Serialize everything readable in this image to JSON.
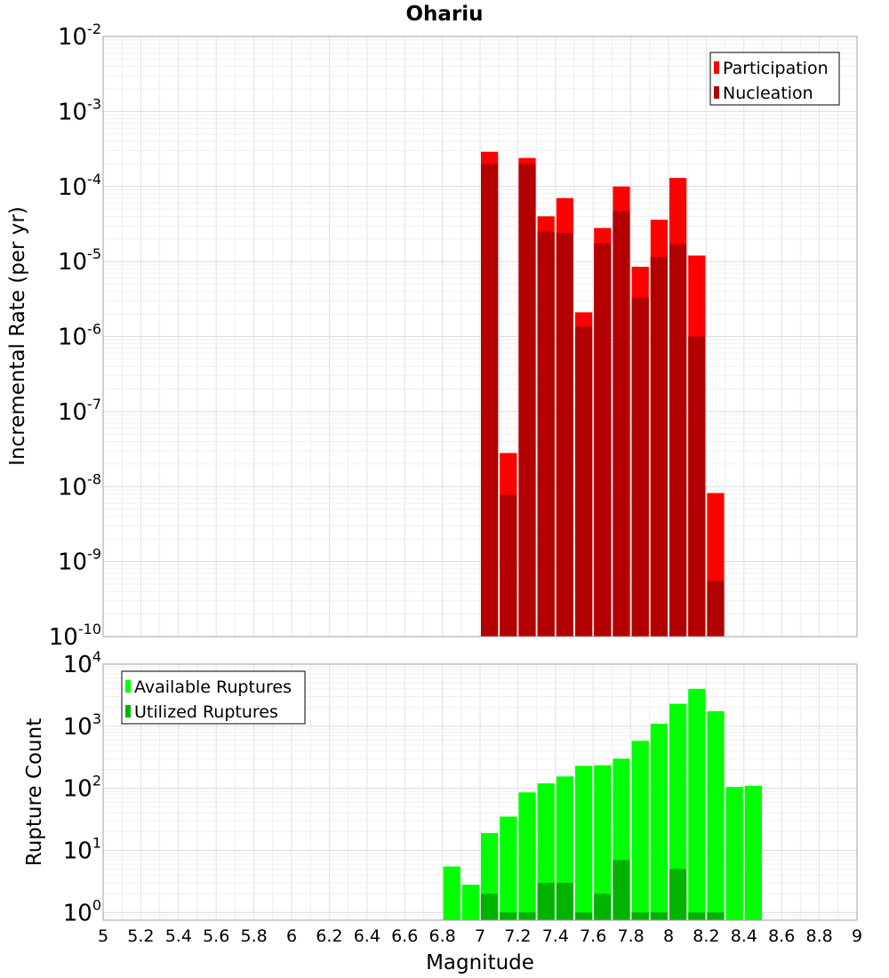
{
  "chart_data": [
    {
      "type": "bar",
      "title": "Ohariu",
      "ylabel": "Incremental Rate (per yr)",
      "yscale": "log",
      "ylim": [
        1e-10,
        0.01
      ],
      "xlim": [
        5,
        9
      ],
      "bin_width": 0.1,
      "legend": {
        "placement": "top-right",
        "entries": [
          "Participation",
          "Nucleation"
        ]
      },
      "grid": true,
      "series": [
        {
          "name": "Participation",
          "color": "#ff0000",
          "x": [
            7.05,
            7.15,
            7.25,
            7.35,
            7.45,
            7.55,
            7.65,
            7.75,
            7.85,
            7.95,
            8.05,
            8.15,
            8.25
          ],
          "values": [
            0.00029,
            2.8e-08,
            0.00024,
            4e-05,
            7e-05,
            2.1e-06,
            2.8e-05,
            0.0001,
            8.5e-06,
            3.6e-05,
            0.00013,
            1.2e-05,
            8.2e-09
          ]
        },
        {
          "name": "Nucleation",
          "color": "#b20000",
          "x": [
            7.05,
            7.15,
            7.25,
            7.35,
            7.45,
            7.55,
            7.65,
            7.75,
            7.85,
            7.95,
            8.05,
            8.15,
            8.25
          ],
          "values": [
            0.0002,
            7.8e-09,
            0.0002,
            2.5e-05,
            2.4e-05,
            1.35e-06,
            1.75e-05,
            4.7e-05,
            3.3e-06,
            1.15e-05,
            1.7e-05,
            1e-06,
            5.5e-10
          ]
        }
      ]
    },
    {
      "type": "bar",
      "xlabel": "Magnitude",
      "ylabel": "Rupture Count",
      "yscale": "log",
      "ylim": [
        0.75,
        10000.0
      ],
      "xlim": [
        5,
        9
      ],
      "bin_width": 0.1,
      "legend": {
        "placement": "top-left",
        "entries": [
          "Available Ruptures",
          "Utilized Ruptures"
        ]
      },
      "grid": true,
      "x_tick_labels": [
        "5",
        "5.2",
        "5.4",
        "5.6",
        "5.8",
        "6",
        "6.2",
        "6.4",
        "6.6",
        "6.8",
        "7",
        "7.2",
        "7.4",
        "7.6",
        "7.8",
        "8",
        "8.2",
        "8.4",
        "8.6",
        "8.8",
        "9"
      ],
      "series": [
        {
          "name": "Available Ruptures",
          "color": "#00ff00",
          "x": [
            6.85,
            6.95,
            7.05,
            7.15,
            7.25,
            7.35,
            7.45,
            7.55,
            7.65,
            7.75,
            7.85,
            7.95,
            8.05,
            8.15,
            8.25,
            8.35,
            8.45
          ],
          "values": [
            5.5,
            2.8,
            19,
            35,
            86,
            120,
            155,
            230,
            235,
            300,
            580,
            1100,
            2300,
            4000,
            1750,
            105,
            110
          ]
        },
        {
          "name": "Utilized Ruptures",
          "color": "#00b200",
          "x": [
            7.05,
            7.15,
            7.25,
            7.35,
            7.45,
            7.55,
            7.65,
            7.75,
            7.85,
            7.95,
            8.05,
            8.15,
            8.25
          ],
          "values": [
            2,
            1,
            1,
            3,
            3,
            1,
            2,
            7,
            1,
            1,
            5,
            1,
            1
          ]
        }
      ]
    }
  ]
}
